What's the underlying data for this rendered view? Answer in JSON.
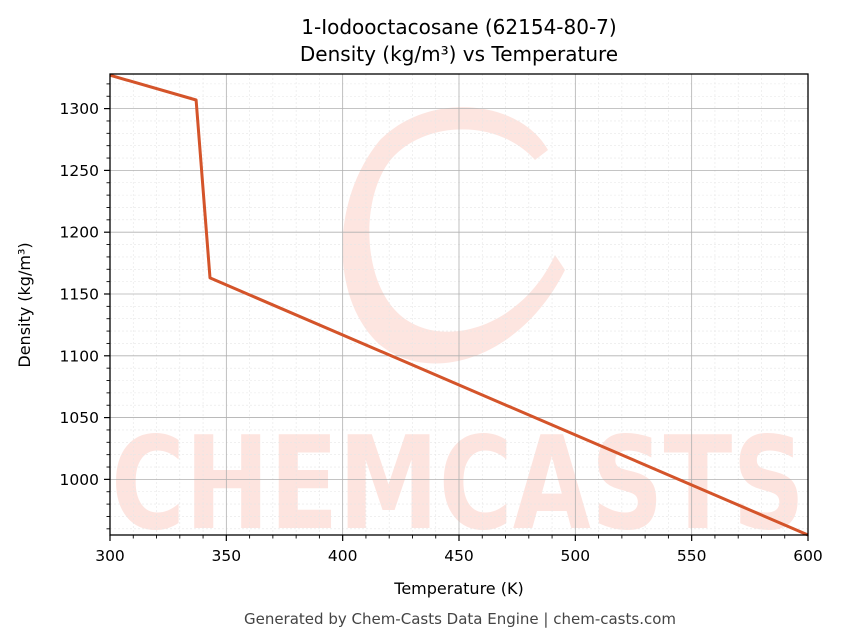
{
  "chart_data": {
    "type": "line",
    "title": "1-Iodooctacosane (62154-80-7)",
    "subtitle": "Density (kg/m³) vs Temperature",
    "xlabel": "Temperature (K)",
    "ylabel": "Density (kg/m³)",
    "xlim": [
      300,
      600
    ],
    "ylim": [
      955,
      1328
    ],
    "x_ticks": [
      300,
      350,
      400,
      450,
      500,
      550,
      600
    ],
    "y_ticks": [
      1000,
      1050,
      1100,
      1150,
      1200,
      1250,
      1300
    ],
    "grid": true,
    "line_color": "#d4542a",
    "series": [
      {
        "x": [
          300,
          337,
          343,
          600
        ],
        "values": [
          1327,
          1307,
          1163,
          955
        ]
      }
    ]
  },
  "watermark": {
    "text": "CHEMCASTS",
    "color": "#fde0da"
  },
  "footer": "Generated by Chem-Casts Data Engine | chem-casts.com"
}
